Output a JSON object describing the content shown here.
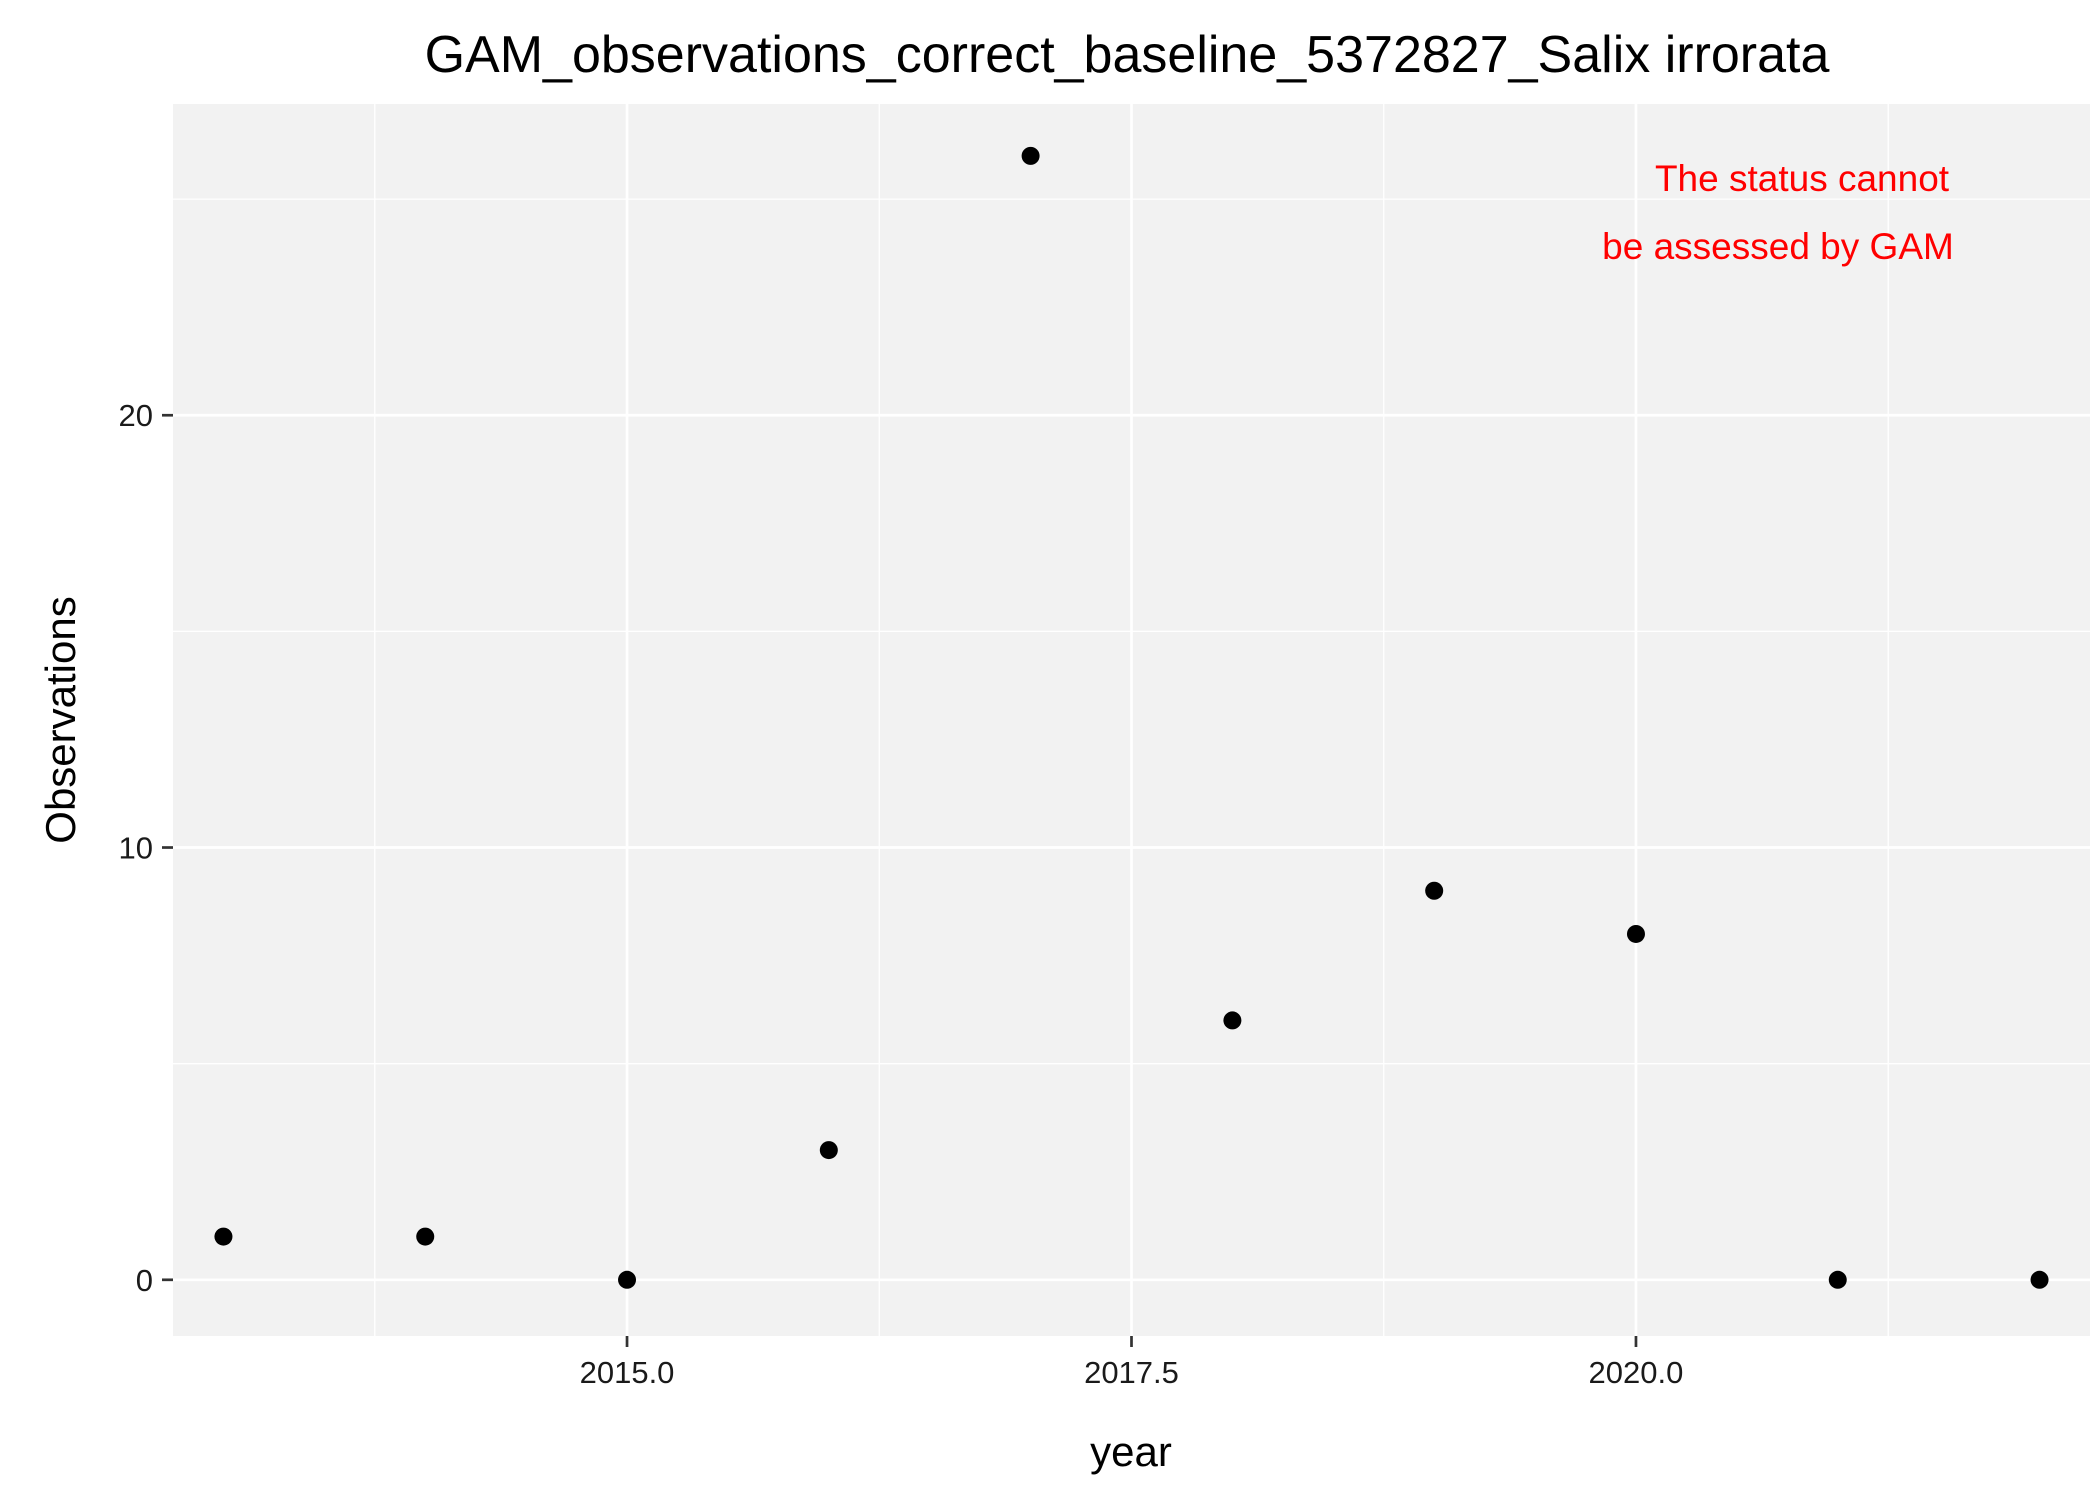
{
  "chart_data": {
    "type": "scatter",
    "title": "GAM_observations_correct_baseline_5372827_Salix irrorata",
    "xlabel": "year",
    "ylabel": "Observations",
    "xlim": [
      2012.75,
      2022.25
    ],
    "ylim": [
      -1.3,
      27.2
    ],
    "x_ticks": [
      {
        "value": 2015.0,
        "label": "2015.0"
      },
      {
        "value": 2017.5,
        "label": "2017.5"
      },
      {
        "value": 2020.0,
        "label": "2020.0"
      }
    ],
    "y_ticks": [
      {
        "value": 0,
        "label": "0"
      },
      {
        "value": 10,
        "label": "10"
      },
      {
        "value": 20,
        "label": "20"
      }
    ],
    "grid": true,
    "legend": "none",
    "points": [
      {
        "x": 2013,
        "y": 1
      },
      {
        "x": 2014,
        "y": 1
      },
      {
        "x": 2015,
        "y": 0
      },
      {
        "x": 2016,
        "y": 3
      },
      {
        "x": 2017,
        "y": 26
      },
      {
        "x": 2018,
        "y": 6
      },
      {
        "x": 2019,
        "y": 9
      },
      {
        "x": 2020,
        "y": 8
      },
      {
        "x": 2021,
        "y": 0
      },
      {
        "x": 2022,
        "y": 0
      }
    ],
    "annotation": {
      "lines": [
        "The status cannot",
        "be assessed by GAM"
      ],
      "color": "#ff0000"
    },
    "colors": {
      "panel": "#f2f2f2",
      "grid": "#ffffff",
      "point": "#000000"
    }
  }
}
